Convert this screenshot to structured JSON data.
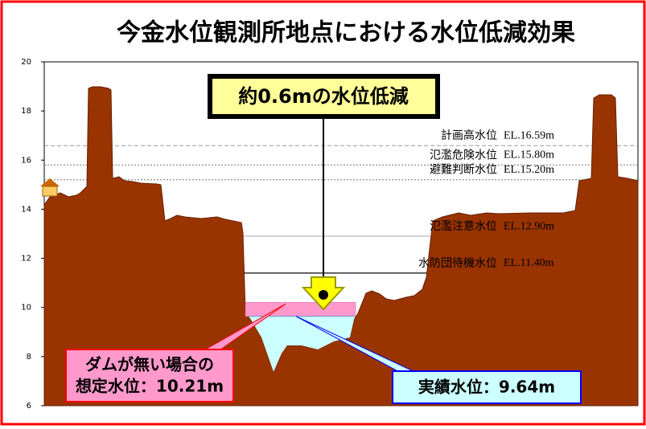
{
  "chart_data": {
    "type": "cross-section",
    "title": "今金水位観測所地点における水位低減効果",
    "ylim": [
      6,
      20
    ],
    "yticks": [
      6,
      8,
      10,
      12,
      14,
      16,
      18,
      20
    ],
    "headline": "約0.6mの水位低減",
    "reference_lines": [
      {
        "name": "計画高水位",
        "label": "EL.16.59m",
        "value": 16.59,
        "style": "dashed",
        "color": "#999999"
      },
      {
        "name": "氾濫危険水位",
        "label": "EL.15.80m",
        "value": 15.8,
        "style": "dotted",
        "color": "#777777"
      },
      {
        "name": "避難判断水位",
        "label": "EL.15.20m",
        "value": 15.2,
        "style": "dotted",
        "color": "#777777"
      },
      {
        "name": "氾濫注意水位",
        "label": "EL.12.90m",
        "value": 12.9,
        "style": "solid",
        "color": "#aaaaaa"
      },
      {
        "name": "水防団待機水位",
        "label": "EL.11.40m",
        "value": 11.4,
        "style": "solid",
        "color": "#333333"
      }
    ],
    "water_levels": [
      {
        "lines": [
          "ダムが無い場合の",
          "想定水位：10.21m"
        ],
        "value": 10.21,
        "color": "#ff99cc",
        "border": "#ff0000"
      },
      {
        "lines": [
          "実績水位：9.64m"
        ],
        "value": 9.64,
        "color": "#ccffff",
        "border": "#0000ff"
      }
    ]
  }
}
